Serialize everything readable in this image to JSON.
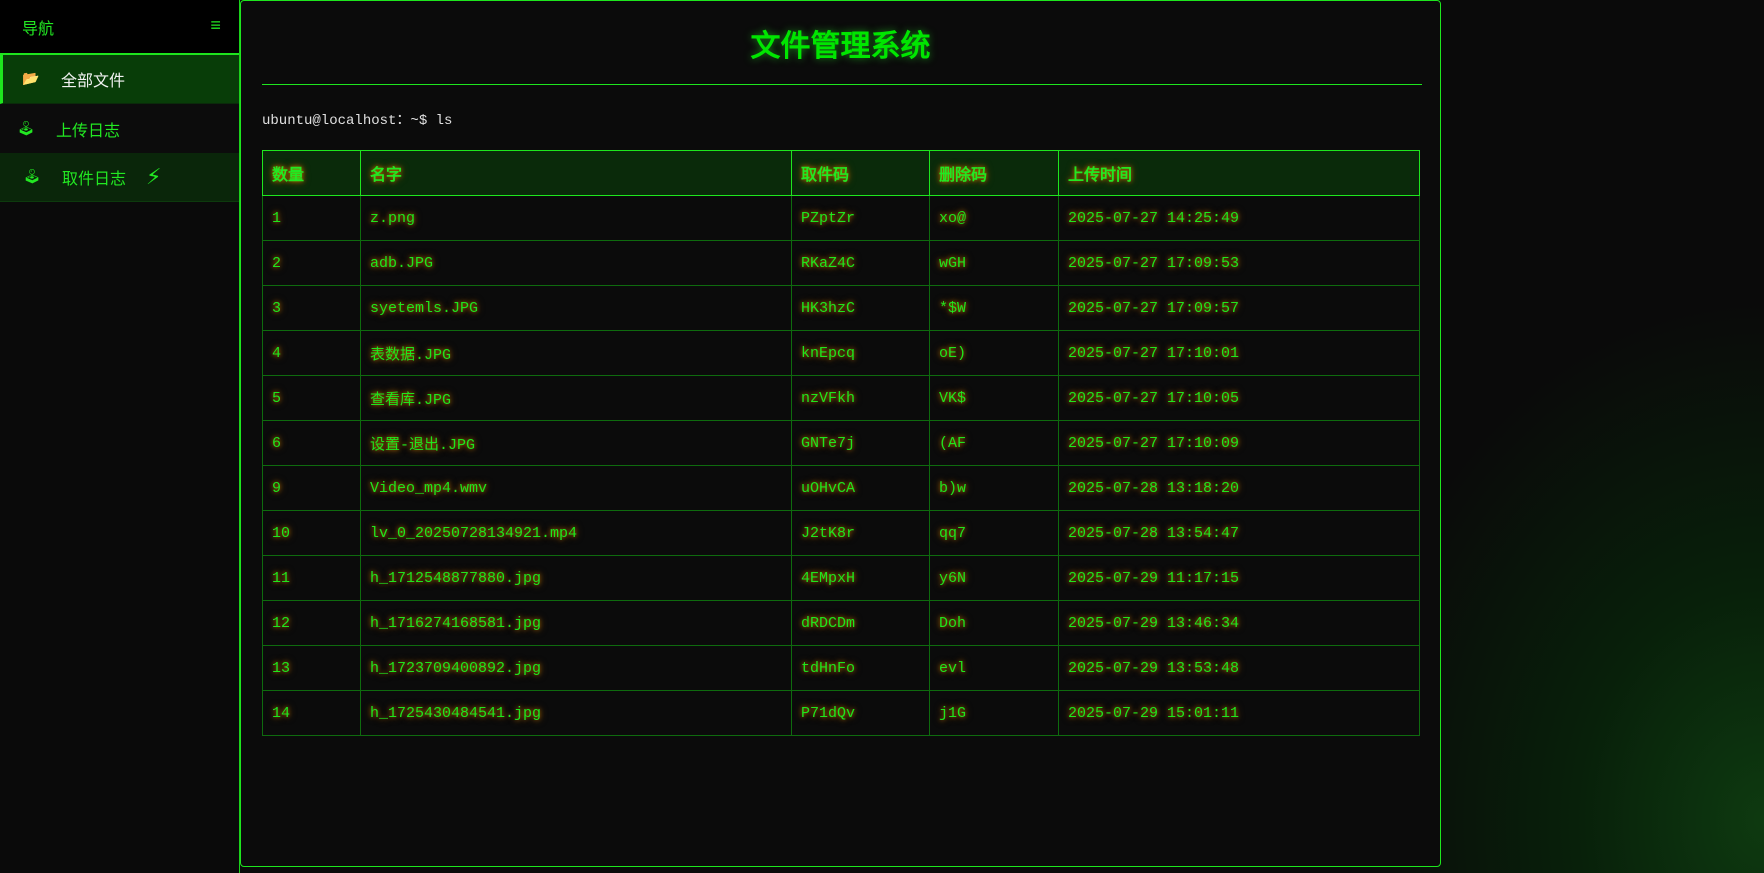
{
  "sidebar": {
    "title": "导航",
    "menu_icon": "≡",
    "items": [
      {
        "label": "全部文件",
        "icon": "folder-icon",
        "active": true
      },
      {
        "label": "上传日志",
        "icon": "joystick-icon"
      },
      {
        "label": "取件日志",
        "icon": "joystick-icon"
      }
    ]
  },
  "main": {
    "title": "文件管理系统",
    "prompt": "ubuntu@localhost：~$ ls",
    "columns": [
      "数量",
      "名字",
      "取件码",
      "删除码",
      "上传时间"
    ],
    "rows": [
      [
        "1",
        "z.png",
        "PZptZr",
        "xo@",
        "2025-07-27 14:25:49"
      ],
      [
        "2",
        "adb.JPG",
        "RKaZ4C",
        "wGH",
        "2025-07-27 17:09:53"
      ],
      [
        "3",
        "syetemls.JPG",
        "HK3hzC",
        "*$W",
        "2025-07-27 17:09:57"
      ],
      [
        "4",
        "表数据.JPG",
        "knEpcq",
        "oE)",
        "2025-07-27 17:10:01"
      ],
      [
        "5",
        "查看库.JPG",
        "nzVFkh",
        "VK$",
        "2025-07-27 17:10:05"
      ],
      [
        "6",
        "设置-退出.JPG",
        "GNTe7j",
        "(AF",
        "2025-07-27 17:10:09"
      ],
      [
        "9",
        "Video_mp4.wmv",
        "uOHvCA",
        "b)w",
        "2025-07-28 13:18:20"
      ],
      [
        "10",
        "lv_0_20250728134921.mp4",
        "J2tK8r",
        "qq7",
        "2025-07-28 13:54:47"
      ],
      [
        "11",
        "h_1712548877880.jpg",
        "4EMpxH",
        "y6N",
        "2025-07-29 11:17:15"
      ],
      [
        "12",
        "h_1716274168581.jpg",
        "dRDCDm",
        "Doh",
        "2025-07-29 13:46:34"
      ],
      [
        "13",
        "h_1723709400892.jpg",
        "tdHnFo",
        "evl",
        "2025-07-29 13:53:48"
      ],
      [
        "14",
        "h_1725430484541.jpg",
        "P71dQv",
        "j1G",
        "2025-07-29 15:01:11"
      ]
    ]
  },
  "colors": {
    "accent": "#1ee61e",
    "glow": "#b46a00",
    "background": "#0a0a0a"
  }
}
